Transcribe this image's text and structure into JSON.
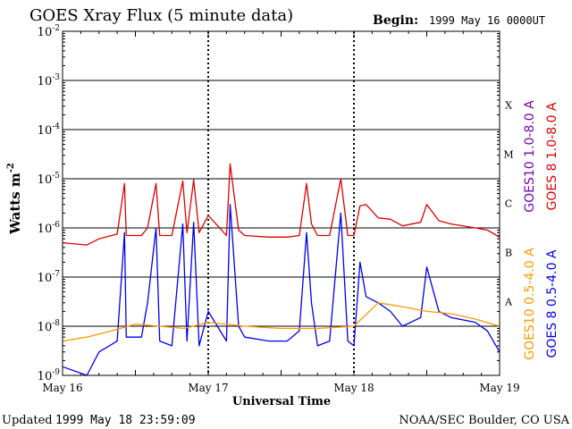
{
  "chart_data": {
    "type": "line",
    "title": "GOES Xray Flux (5 minute data)",
    "begin_label": "Begin:",
    "begin_value": "1999 May 16 0000UT",
    "ylabel": "Watts m",
    "ylabel_sup": "-2",
    "xlabel": "Universal Time",
    "y_scale": "log",
    "ylim": [
      1e-09,
      0.01
    ],
    "y_ticks": [
      {
        "base": "10",
        "exp": "-2",
        "value": 0.01
      },
      {
        "base": "10",
        "exp": "-3",
        "value": 0.001
      },
      {
        "base": "10",
        "exp": "-4",
        "value": 0.0001
      },
      {
        "base": "10",
        "exp": "-5",
        "value": 1e-05
      },
      {
        "base": "10",
        "exp": "-6",
        "value": 1e-06
      },
      {
        "base": "10",
        "exp": "-7",
        "value": 1e-07
      },
      {
        "base": "10",
        "exp": "-8",
        "value": 1e-08
      },
      {
        "base": "10",
        "exp": "-9",
        "value": 1e-09
      }
    ],
    "x_ticks": [
      "May 16",
      "May 17",
      "May 18",
      "May 19"
    ],
    "xlim": [
      "1999-05-16T00:00",
      "1999-05-19T00:00"
    ],
    "flare_classes": [
      {
        "label": "X",
        "min": 0.0001,
        "max": 0.001
      },
      {
        "label": "M",
        "min": 1e-05,
        "max": 0.0001
      },
      {
        "label": "C",
        "min": 1e-06,
        "max": 1e-05
      },
      {
        "label": "B",
        "min": 1e-07,
        "max": 1e-06
      },
      {
        "label": "A",
        "min": 1e-08,
        "max": 1e-07
      }
    ],
    "grid": true,
    "series": [
      {
        "name": "GOES 8 1.0-8.0 A",
        "color": "#dd0000",
        "x": [
          "1999-05-16T00:00",
          "1999-05-16T04:00",
          "1999-05-16T06:00",
          "1999-05-16T09:00",
          "1999-05-16T10:12",
          "1999-05-16T10:30",
          "1999-05-16T13:00",
          "1999-05-16T14:00",
          "1999-05-16T15:24",
          "1999-05-16T16:00",
          "1999-05-16T18:00",
          "1999-05-16T19:48",
          "1999-05-16T20:30",
          "1999-05-16T21:36",
          "1999-05-16T22:30",
          "1999-05-17T00:00",
          "1999-05-17T03:00",
          "1999-05-17T03:36",
          "1999-05-17T05:00",
          "1999-05-17T06:00",
          "1999-05-17T10:00",
          "1999-05-17T13:00",
          "1999-05-17T15:00",
          "1999-05-17T16:12",
          "1999-05-17T17:00",
          "1999-05-17T18:00",
          "1999-05-17T20:00",
          "1999-05-17T21:50",
          "1999-05-17T23:00",
          "1999-05-18T00:00",
          "1999-05-18T01:00",
          "1999-05-18T02:00",
          "1999-05-18T04:00",
          "1999-05-18T06:00",
          "1999-05-18T08:00",
          "1999-05-18T11:00",
          "1999-05-18T12:00",
          "1999-05-18T14:00",
          "1999-05-18T16:00",
          "1999-05-18T20:00",
          "1999-05-18T22:00",
          "1999-05-19T00:00"
        ],
        "values": [
          5e-07,
          4.5e-07,
          6e-07,
          7.5e-07,
          8e-06,
          7e-07,
          7e-07,
          1e-06,
          8e-06,
          7e-07,
          7e-07,
          9e-06,
          8e-07,
          9.5e-06,
          8e-07,
          1.8e-06,
          7e-07,
          2e-05,
          9e-07,
          7e-07,
          6.5e-07,
          6.5e-07,
          7e-07,
          8e-06,
          1.2e-06,
          7e-07,
          7e-07,
          1e-05,
          7e-07,
          7e-07,
          2.8e-06,
          3e-06,
          1.6e-06,
          1.5e-06,
          1.1e-06,
          1.3e-06,
          3e-06,
          1.4e-06,
          1.2e-06,
          1e-06,
          9e-07,
          6.5e-07
        ]
      },
      {
        "name": "GOES 8 0.5-4.0 A",
        "color": "#0000ee",
        "x": [
          "1999-05-16T00:00",
          "1999-05-16T04:00",
          "1999-05-16T06:00",
          "1999-05-16T09:00",
          "1999-05-16T10:12",
          "1999-05-16T10:30",
          "1999-05-16T13:00",
          "1999-05-16T14:00",
          "1999-05-16T15:24",
          "1999-05-16T16:00",
          "1999-05-16T18:00",
          "1999-05-16T19:48",
          "1999-05-16T20:30",
          "1999-05-16T21:36",
          "1999-05-16T22:30",
          "1999-05-17T00:00",
          "1999-05-17T03:00",
          "1999-05-17T03:36",
          "1999-05-17T05:00",
          "1999-05-17T06:00",
          "1999-05-17T10:00",
          "1999-05-17T13:00",
          "1999-05-17T15:00",
          "1999-05-17T16:12",
          "1999-05-17T17:00",
          "1999-05-17T18:00",
          "1999-05-17T20:00",
          "1999-05-17T21:50",
          "1999-05-17T23:00",
          "1999-05-18T00:00",
          "1999-05-18T01:00",
          "1999-05-18T02:00",
          "1999-05-18T04:00",
          "1999-05-18T06:00",
          "1999-05-18T08:00",
          "1999-05-18T11:00",
          "1999-05-18T12:00",
          "1999-05-18T14:00",
          "1999-05-18T16:00",
          "1999-05-18T20:00",
          "1999-05-18T22:00",
          "1999-05-19T00:00"
        ],
        "values": [
          1.5e-09,
          1e-09,
          3e-09,
          5e-09,
          8e-07,
          6e-09,
          6e-09,
          3e-08,
          1e-06,
          5e-09,
          4e-09,
          1.2e-06,
          5e-09,
          1.3e-06,
          4e-09,
          2e-08,
          5e-09,
          3e-06,
          1e-08,
          6e-09,
          5e-09,
          5e-09,
          8e-09,
          8e-07,
          3e-08,
          4e-09,
          5e-09,
          2e-06,
          5e-09,
          4e-09,
          2e-07,
          4e-08,
          3e-08,
          2e-08,
          1e-08,
          1.5e-08,
          1.6e-07,
          2e-08,
          1.5e-08,
          1.2e-08,
          8e-09,
          3e-09
        ]
      },
      {
        "name": "GOES10 1.0-8.0 A",
        "color": "#7700bb",
        "x": [],
        "values": []
      },
      {
        "name": "GOES10 0.5-4.0 A",
        "color": "#ff9900",
        "x": [
          "1999-05-16T00:00",
          "1999-05-16T04:00",
          "1999-05-16T08:00",
          "1999-05-16T12:00",
          "1999-05-16T16:00",
          "1999-05-16T20:00",
          "1999-05-17T00:00",
          "1999-05-17T06:00",
          "1999-05-17T12:00",
          "1999-05-17T18:00",
          "1999-05-18T00:00",
          "1999-05-18T04:00",
          "1999-05-18T08:00",
          "1999-05-18T12:00",
          "1999-05-18T16:00",
          "1999-05-18T20:00",
          "1999-05-19T00:00"
        ],
        "values": [
          5e-09,
          6e-09,
          8e-09,
          1.1e-08,
          1e-08,
          9e-09,
          1.2e-08,
          1e-08,
          9e-09,
          9e-09,
          1e-08,
          3e-08,
          2.5e-08,
          2e-08,
          1.8e-08,
          1.4e-08,
          1e-08
        ]
      }
    ]
  },
  "footer": {
    "updated_label": "Updated",
    "updated_value": "1999 May 18 23:59:09",
    "credit": "NOAA/SEC Boulder, CO USA"
  }
}
